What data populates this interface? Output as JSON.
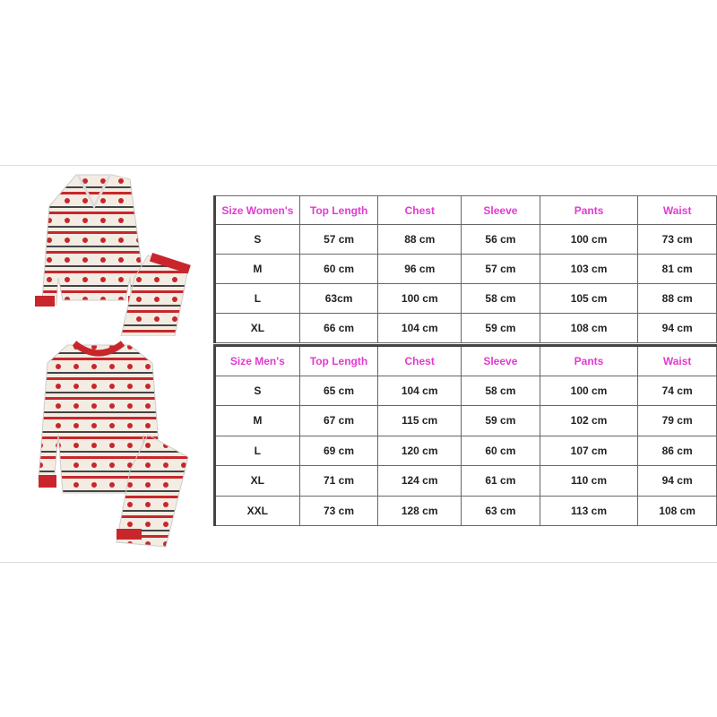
{
  "women_table": {
    "headers": [
      "Size Women's",
      "Top Length",
      "Chest",
      "Sleeve",
      "Pants",
      "Waist"
    ],
    "rows": [
      [
        "S",
        "57 cm",
        "88 cm",
        "56 cm",
        "100 cm",
        "73 cm"
      ],
      [
        "M",
        "60 cm",
        "96 cm",
        "57 cm",
        "103 cm",
        "81 cm"
      ],
      [
        "L",
        "63cm",
        "100 cm",
        "58 cm",
        "105 cm",
        "88 cm"
      ],
      [
        "XL",
        "66 cm",
        "104 cm",
        "59 cm",
        "108 cm",
        "94 cm"
      ]
    ]
  },
  "men_table": {
    "headers": [
      "Size Men's",
      "Top Length",
      "Chest",
      "Sleeve",
      "Pants",
      "Waist"
    ],
    "rows": [
      [
        "S",
        "65 cm",
        "104 cm",
        "58 cm",
        "100 cm",
        "74 cm"
      ],
      [
        "M",
        "67 cm",
        "115 cm",
        "59 cm",
        "102 cm",
        "79 cm"
      ],
      [
        "L",
        "69 cm",
        "120 cm",
        "60 cm",
        "107 cm",
        "86 cm"
      ],
      [
        "XL",
        "71 cm",
        "124 cm",
        "61 cm",
        "110 cm",
        "94 cm"
      ],
      [
        "XXL",
        "73 cm",
        "128 cm",
        "63 cm",
        "113 cm",
        "108 cm"
      ]
    ]
  },
  "colors": {
    "header_text": "#e23ad0",
    "pajama_red": "#c8262c",
    "pajama_cream": "#f3ece2"
  },
  "images": [
    "womens-pajama-set",
    "mens-pajama-set"
  ]
}
